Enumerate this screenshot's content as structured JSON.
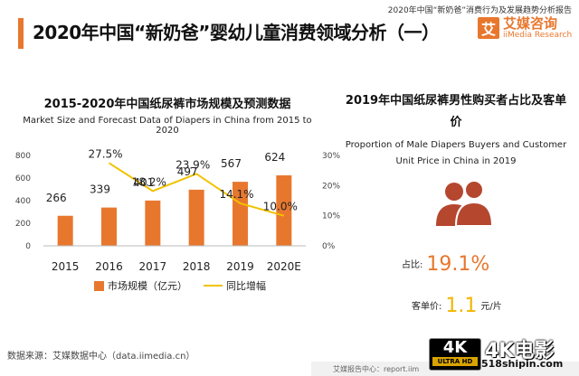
{
  "header": {
    "report_name": "2020年中国“新奶爸”消费行为及发展趋势分析报告",
    "title": "2020年中国“新奶爸”婴幼儿童消费领域分析（一）",
    "logo_mark": "艾",
    "logo_cn": "艾媒咨询",
    "logo_en": "iiMedia Research"
  },
  "colors": {
    "accent": "#e8772e",
    "line": "#f2c200",
    "price": "#f2b600"
  },
  "chart_data": {
    "type": "bar",
    "title": "2015-2020年中国纸尿裤市场规模及预测数据",
    "subtitle": "Market Size and Forecast Data of Diapers in China from 2015 to 2020",
    "categories": [
      "2015",
      "2016",
      "2017",
      "2018",
      "2019",
      "2020E"
    ],
    "series": [
      {
        "name": "市场规模（亿元）",
        "type": "bar",
        "values": [
          266,
          339,
          401,
          497,
          567,
          624
        ],
        "labels": [
          "266",
          "339",
          "401",
          "497",
          "567",
          "624"
        ],
        "axis": "left"
      },
      {
        "name": "同比增幅",
        "type": "line",
        "values": [
          null,
          27.5,
          18.2,
          23.9,
          14.1,
          10.0
        ],
        "labels": [
          "",
          "27.5%",
          "18.2%",
          "23.9%",
          "14.1%",
          "10.0%"
        ],
        "axis": "right"
      }
    ],
    "y_left": {
      "ticks": [
        "0",
        "200",
        "400",
        "600",
        "800"
      ],
      "range": [
        0,
        800
      ]
    },
    "y_right": {
      "ticks": [
        "0%",
        "10%",
        "20%",
        "30%"
      ],
      "range": [
        0,
        30
      ]
    },
    "grid": false,
    "legend_position": "bottom"
  },
  "right_panel": {
    "title": "2019年中国纸尿裤男性购买者占比及客单价",
    "subtitle": "Proportion of Male Diapers Buyers and Customer Unit Price in China in 2019",
    "icon": "people-icon",
    "ratio_label": "占比:",
    "ratio_value": "19.1%",
    "price_label": "客单价:",
    "price_value": "1.1",
    "price_unit": "元/片"
  },
  "footer": {
    "source": "数据来源：艾媒数据中心（data.iimedia.cn）",
    "note": "艾媒报告中心：report.iim"
  },
  "watermark": {
    "badge_top": "4K",
    "badge_bottom": "ULTRA HD",
    "brand": "4K电影",
    "site": "518shipin.com"
  }
}
